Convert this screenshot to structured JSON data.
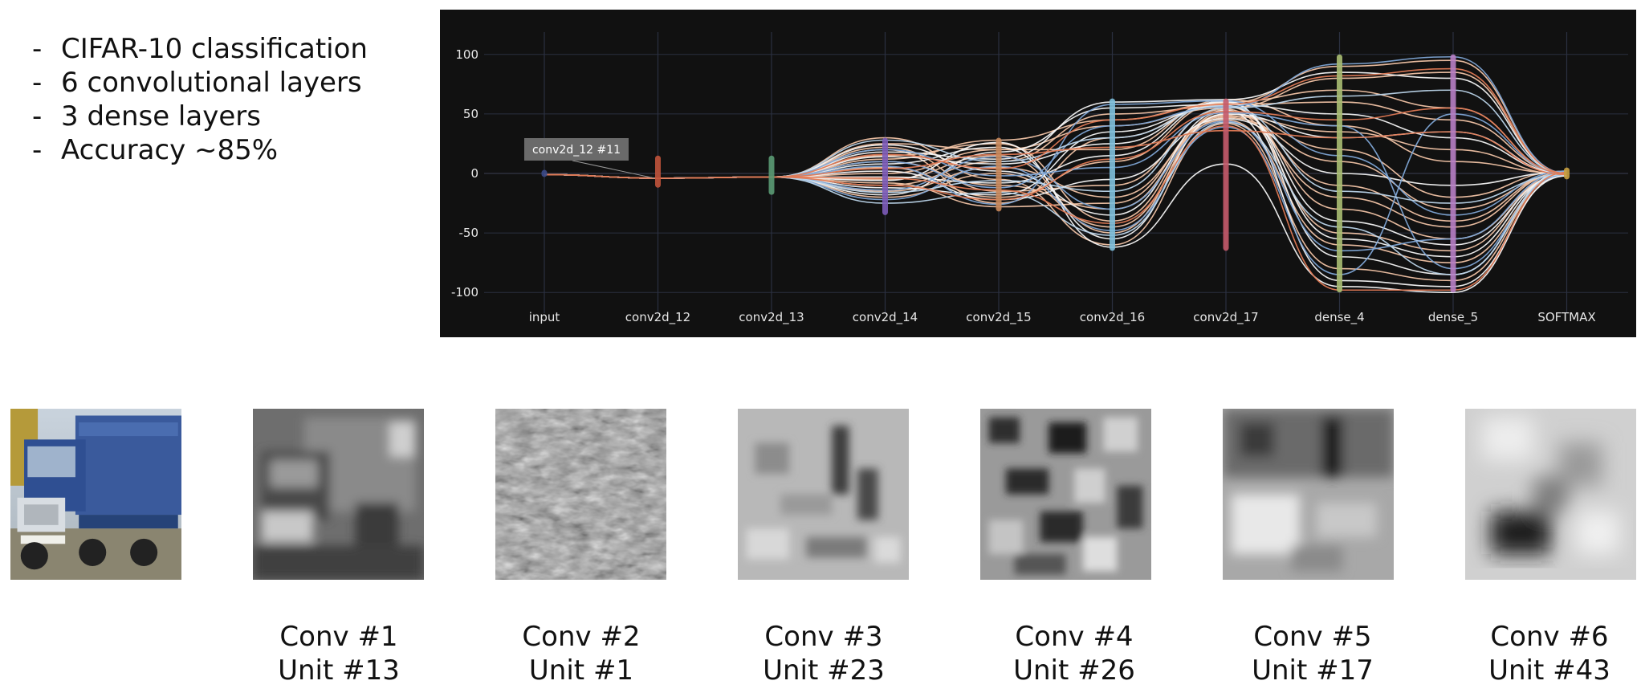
{
  "bullets": [
    "CIFAR-10 classification",
    "6 convolutional layers",
    "3 dense layers",
    "Accuracy ~85%"
  ],
  "chart_data": {
    "type": "line",
    "categories": [
      "input",
      "conv2d_12",
      "conv2d_13",
      "conv2d_14",
      "conv2d_15",
      "conv2d_16",
      "conv2d_17",
      "dense_4",
      "dense_5",
      "SOFTMAX"
    ],
    "y_ticks": [
      100,
      50,
      0,
      -50,
      -100
    ],
    "ylim": [
      -112,
      112
    ],
    "grid": true,
    "tooltip": "conv2d_12 #11",
    "axis_colors": [
      "#3b4a8a",
      "#c0533b",
      "#5a9a73",
      "#7c5bb8",
      "#c8875a",
      "#7ec0dc",
      "#c45a6a",
      "#a8bd72",
      "#b77ec4",
      "#c8a040"
    ],
    "axis_ranges": [
      [
        -3,
        3
      ],
      [
        -12,
        15
      ],
      [
        -18,
        15
      ],
      [
        -35,
        30
      ],
      [
        -32,
        30
      ],
      [
        -65,
        63
      ],
      [
        -65,
        63
      ],
      [
        -100,
        100
      ],
      [
        -100,
        100
      ],
      [
        -5,
        5
      ]
    ],
    "series_colors": {
      "peach": "#f2c4a6",
      "white": "#f4f4f4",
      "blue": "#7fa7d6",
      "light_blue": "#bcd5ea",
      "orange": "#e07a55"
    },
    "series": [
      {
        "color": "peach",
        "values": [
          -1,
          -4,
          -3,
          25,
          20,
          40,
          55,
          80,
          85,
          0
        ]
      },
      {
        "color": "peach",
        "values": [
          -1,
          -4,
          -3,
          10,
          -10,
          -30,
          48,
          35,
          20,
          -1
        ]
      },
      {
        "color": "peach",
        "values": [
          -1,
          -4,
          -3,
          -5,
          15,
          -50,
          52,
          -10,
          -40,
          1
        ]
      },
      {
        "color": "peach",
        "values": [
          -1,
          -4,
          -3,
          20,
          -25,
          30,
          58,
          60,
          45,
          0
        ]
      },
      {
        "color": "peach",
        "values": [
          -1,
          -4,
          -3,
          -15,
          5,
          -20,
          45,
          -60,
          -75,
          -2
        ]
      },
      {
        "color": "peach",
        "values": [
          -1,
          -4,
          -3,
          15,
          25,
          -40,
          50,
          20,
          -20,
          2
        ]
      },
      {
        "color": "peach",
        "values": [
          -1,
          -4,
          -3,
          5,
          -20,
          10,
          60,
          70,
          55,
          0
        ]
      },
      {
        "color": "peach",
        "values": [
          -1,
          -4,
          -3,
          -10,
          10,
          50,
          56,
          -30,
          -55,
          -1
        ]
      },
      {
        "color": "peach",
        "values": [
          -1,
          -4,
          -3,
          30,
          -5,
          -60,
          42,
          -80,
          -90,
          1
        ]
      },
      {
        "color": "peach",
        "values": [
          -1,
          -4,
          -3,
          0,
          20,
          20,
          62,
          40,
          10,
          0
        ]
      },
      {
        "color": "peach",
        "values": [
          -1,
          -4,
          -3,
          22,
          -15,
          -10,
          54,
          -50,
          -65,
          2
        ]
      },
      {
        "color": "peach",
        "values": [
          -1,
          -4,
          -3,
          -20,
          0,
          -45,
          47,
          10,
          -30,
          -1
        ]
      },
      {
        "color": "peach",
        "values": [
          -1,
          -4,
          -3,
          12,
          28,
          45,
          59,
          90,
          95,
          0
        ]
      },
      {
        "color": "peach",
        "values": [
          -1,
          -4,
          -3,
          -8,
          -28,
          -25,
          49,
          -20,
          -45,
          1
        ]
      },
      {
        "color": "white",
        "values": [
          -1,
          -4,
          -3,
          18,
          12,
          60,
          62,
          85,
          80,
          0
        ]
      },
      {
        "color": "white",
        "values": [
          -1,
          -4,
          -3,
          -12,
          -18,
          35,
          57,
          -40,
          -60,
          -1
        ]
      },
      {
        "color": "white",
        "values": [
          -1,
          -4,
          -3,
          8,
          22,
          -55,
          50,
          30,
          35,
          0
        ]
      },
      {
        "color": "white",
        "values": [
          -1,
          -4,
          -3,
          -3,
          -8,
          15,
          61,
          -70,
          -85,
          2
        ]
      },
      {
        "color": "white",
        "values": [
          -1,
          -4,
          -3,
          24,
          2,
          -35,
          53,
          -90,
          -95,
          -2
        ]
      },
      {
        "color": "white",
        "values": [
          -1,
          -4,
          -3,
          -18,
          18,
          55,
          58,
          50,
          30,
          0
        ]
      },
      {
        "color": "white",
        "values": [
          -1,
          -4,
          -3,
          2,
          -22,
          -5,
          46,
          0,
          -10,
          1
        ]
      },
      {
        "color": "white",
        "values": [
          -1,
          -4,
          -3,
          14,
          8,
          25,
          60,
          -55,
          -70,
          0
        ]
      },
      {
        "color": "white",
        "values": [
          -1,
          -4,
          -3,
          -6,
          26,
          -62,
          8,
          -95,
          -100,
          -1
        ]
      },
      {
        "color": "blue",
        "values": [
          -1,
          -4,
          -3,
          10,
          -12,
          40,
          56,
          92,
          98,
          0
        ]
      },
      {
        "color": "blue",
        "values": [
          -1,
          -4,
          -3,
          -14,
          14,
          -30,
          44,
          -65,
          -55,
          1
        ]
      },
      {
        "color": "blue",
        "values": [
          -1,
          -4,
          -3,
          20,
          -2,
          5,
          51,
          40,
          -80,
          -1
        ]
      },
      {
        "color": "blue",
        "values": [
          -1,
          -4,
          -3,
          -22,
          6,
          -48,
          39,
          -85,
          50,
          0
        ]
      },
      {
        "color": "blue",
        "values": [
          -1,
          -4,
          -3,
          6,
          -26,
          58,
          61,
          15,
          -35,
          2
        ]
      },
      {
        "color": "light_blue",
        "values": [
          -1,
          -4,
          -3,
          -16,
          -6,
          -15,
          55,
          65,
          70,
          0
        ]
      },
      {
        "color": "light_blue",
        "values": [
          -1,
          -4,
          -3,
          28,
          10,
          30,
          57,
          -15,
          -25,
          -1
        ]
      },
      {
        "color": "light_blue",
        "values": [
          -1,
          -4,
          -3,
          -25,
          -16,
          -52,
          43,
          -45,
          -85,
          1
        ]
      },
      {
        "color": "orange",
        "values": [
          -1,
          -4,
          -3,
          16,
          4,
          45,
          58,
          82,
          88,
          0
        ]
      },
      {
        "color": "orange",
        "values": [
          -1,
          -4,
          -3,
          -4,
          -14,
          -42,
          40,
          -98,
          -98,
          1
        ]
      },
      {
        "color": "orange",
        "values": [
          -1,
          -4,
          -3,
          4,
          16,
          22,
          36,
          30,
          35,
          -1
        ]
      },
      {
        "color": "orange",
        "values": [
          -1,
          -4,
          -3,
          -10,
          -22,
          12,
          52,
          45,
          55,
          0
        ]
      }
    ]
  },
  "captions": [
    {
      "line1": "Conv #1",
      "line2": "Unit #13"
    },
    {
      "line1": "Conv #2",
      "line2": "Unit #1"
    },
    {
      "line1": "Conv #3",
      "line2": "Unit #23"
    },
    {
      "line1": "Conv #4",
      "line2": "Unit #26"
    },
    {
      "line1": "Conv #5",
      "line2": "Unit #17"
    },
    {
      "line1": "Conv #6",
      "line2": "Unit #43"
    }
  ]
}
